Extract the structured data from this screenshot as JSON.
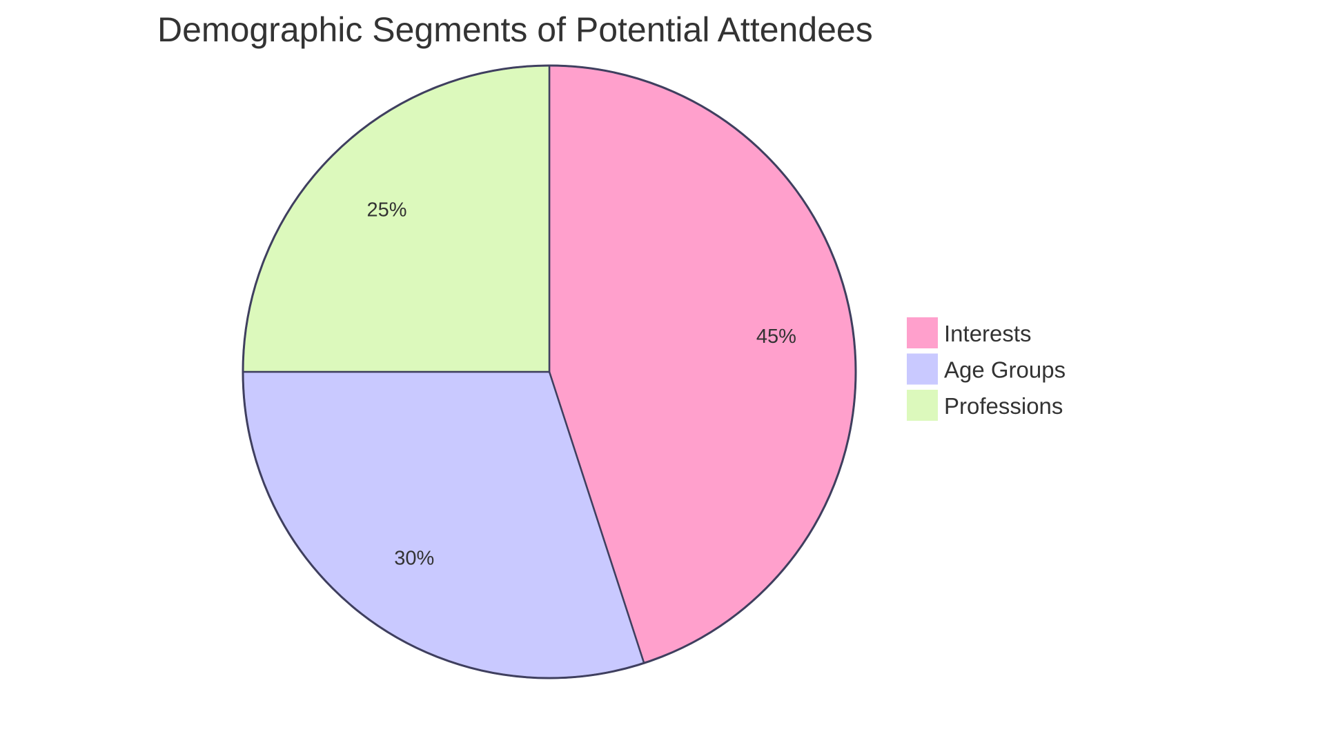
{
  "chart_data": {
    "type": "pie",
    "title": "Demographic Segments of Potential Attendees",
    "categories": [
      "Interests",
      "Age Groups",
      "Professions"
    ],
    "values": [
      45,
      30,
      25
    ],
    "labels": [
      "45%",
      "30%",
      "25%"
    ],
    "colors": [
      "#FFA0CC",
      "#C9C9FF",
      "#DCF9BC"
    ],
    "stroke_color": "#3F3F5F",
    "legend_position": "right"
  }
}
